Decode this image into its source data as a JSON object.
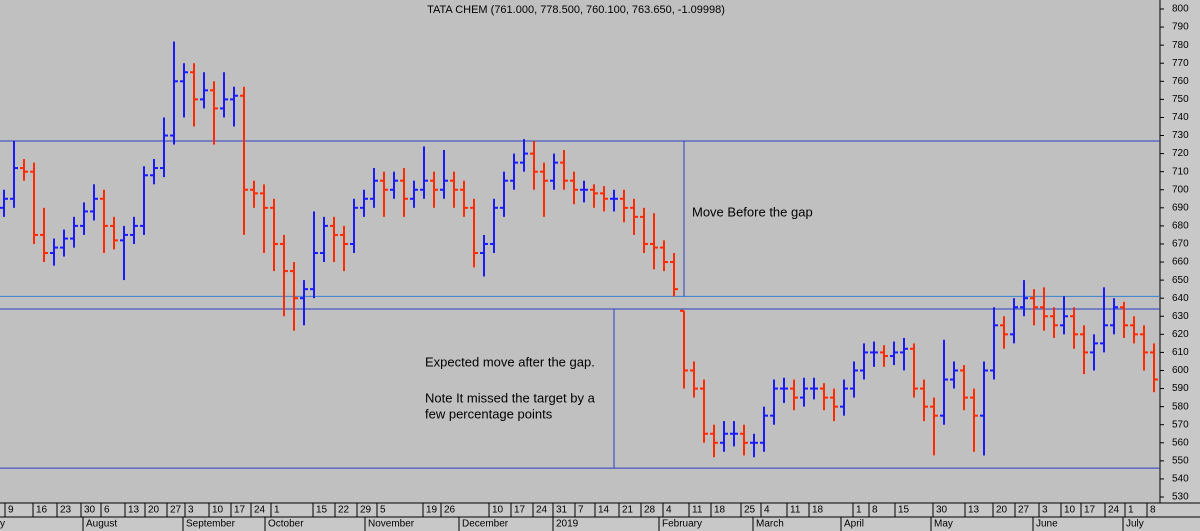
{
  "chart_data": {
    "type": "ohlc",
    "title": "TATA CHEM (761.000, 778.500, 760.100, 763.650, -1.09998)",
    "up_color": "#1a1aff",
    "down_color": "#ff2a00",
    "open": [
      690,
      695,
      712,
      710,
      675,
      665,
      668,
      673,
      680,
      688,
      695,
      680,
      672,
      675,
      680,
      708,
      712,
      730,
      760,
      765,
      750,
      755,
      745,
      750,
      752,
      700,
      698,
      690,
      670,
      655,
      640,
      645,
      665,
      680,
      675,
      670,
      690,
      695,
      705,
      700,
      705,
      695,
      700,
      705,
      700,
      705,
      700,
      690,
      665,
      670,
      690,
      705,
      715,
      720,
      710,
      705,
      715,
      705,
      700,
      700,
      698,
      695,
      695,
      690,
      685,
      670,
      668,
      660,
      633,
      600,
      590,
      565,
      560,
      565,
      565,
      560,
      560,
      575,
      590,
      590,
      585,
      590,
      590,
      585,
      580,
      590,
      600,
      610,
      610,
      608,
      610,
      612,
      590,
      580,
      575,
      595,
      600,
      585,
      575,
      600,
      625,
      620,
      635,
      640,
      635,
      630,
      625,
      630,
      620,
      610,
      615,
      625,
      635,
      625,
      620,
      610
    ],
    "high": [
      700,
      727,
      717,
      715,
      690,
      673,
      678,
      685,
      693,
      703,
      700,
      685,
      680,
      685,
      713,
      717,
      740,
      782,
      770,
      770,
      765,
      760,
      765,
      757,
      757,
      705,
      703,
      695,
      675,
      660,
      650,
      688,
      685,
      685,
      680,
      695,
      700,
      712,
      710,
      710,
      712,
      705,
      724,
      710,
      722,
      710,
      705,
      695,
      675,
      695,
      710,
      720,
      728,
      727,
      715,
      720,
      722,
      710,
      705,
      703,
      702,
      700,
      700,
      695,
      690,
      687,
      672,
      665,
      633,
      605,
      595,
      570,
      572,
      572,
      570,
      565,
      580,
      595,
      596,
      595,
      596,
      596,
      593,
      590,
      595,
      605,
      615,
      616,
      614,
      616,
      618,
      615,
      595,
      585,
      617,
      605,
      603,
      590,
      605,
      635,
      630,
      640,
      650,
      645,
      646,
      635,
      641,
      635,
      625,
      620,
      646,
      640,
      638,
      630,
      625,
      615
    ],
    "low": [
      685,
      690,
      705,
      670,
      660,
      658,
      663,
      668,
      675,
      683,
      665,
      667,
      650,
      670,
      675,
      703,
      707,
      725,
      740,
      735,
      745,
      725,
      740,
      735,
      675,
      690,
      665,
      655,
      630,
      622,
      625,
      640,
      660,
      660,
      655,
      665,
      685,
      690,
      685,
      695,
      685,
      690,
      695,
      690,
      695,
      690,
      685,
      657,
      652,
      665,
      685,
      700,
      710,
      700,
      685,
      700,
      700,
      692,
      693,
      690,
      688,
      688,
      682,
      675,
      665,
      656,
      655,
      641,
      590,
      585,
      560,
      552,
      555,
      558,
      553,
      552,
      555,
      570,
      582,
      578,
      580,
      584,
      578,
      572,
      575,
      585,
      595,
      602,
      602,
      603,
      600,
      585,
      572,
      553,
      570,
      590,
      578,
      555,
      553,
      595,
      612,
      615,
      630,
      625,
      622,
      618,
      620,
      612,
      598,
      600,
      610,
      620,
      618,
      615,
      600,
      588
    ],
    "close": [
      695,
      712,
      710,
      675,
      665,
      668,
      673,
      680,
      688,
      695,
      680,
      672,
      675,
      680,
      708,
      712,
      730,
      760,
      765,
      750,
      755,
      745,
      750,
      752,
      700,
      698,
      690,
      670,
      655,
      640,
      645,
      665,
      680,
      675,
      670,
      690,
      695,
      705,
      700,
      705,
      695,
      700,
      705,
      700,
      705,
      700,
      690,
      665,
      670,
      690,
      705,
      715,
      720,
      710,
      705,
      715,
      705,
      700,
      700,
      698,
      695,
      695,
      690,
      685,
      670,
      668,
      660,
      645,
      600,
      590,
      565,
      560,
      565,
      565,
      560,
      560,
      575,
      590,
      590,
      585,
      590,
      590,
      585,
      580,
      590,
      600,
      610,
      610,
      608,
      610,
      612,
      590,
      580,
      575,
      595,
      600,
      585,
      575,
      600,
      625,
      620,
      635,
      640,
      635,
      630,
      625,
      630,
      620,
      610,
      615,
      625,
      635,
      625,
      620,
      610,
      595
    ],
    "xlim": [
      -0.4,
      115.6
    ],
    "ylim": [
      530,
      800
    ],
    "yticks": [
      530,
      540,
      550,
      560,
      570,
      580,
      590,
      600,
      610,
      620,
      630,
      640,
      650,
      660,
      670,
      680,
      690,
      700,
      710,
      720,
      730,
      740,
      750,
      760,
      770,
      780,
      790,
      800
    ],
    "xticks": [
      {
        "value": 0.4,
        "label": "9"
      },
      {
        "value": 3.2,
        "label": "16"
      },
      {
        "value": 5.6,
        "label": "23"
      },
      {
        "value": 8.0,
        "label": "30"
      },
      {
        "value": 10.0,
        "label": "6"
      },
      {
        "value": 12.4,
        "label": "13"
      },
      {
        "value": 14.4,
        "label": "20"
      },
      {
        "value": 16.6,
        "label": "27"
      },
      {
        "value": 18.4,
        "label": "3"
      },
      {
        "value": 20.8,
        "label": "10"
      },
      {
        "value": 23.0,
        "label": "17"
      },
      {
        "value": 25.0,
        "label": "24"
      },
      {
        "value": 27.0,
        "label": "1"
      },
      {
        "value": 31.2,
        "label": "15"
      },
      {
        "value": 33.4,
        "label": "22"
      },
      {
        "value": 35.6,
        "label": "29"
      },
      {
        "value": 37.6,
        "label": "5"
      },
      {
        "value": 42.2,
        "label": "19"
      },
      {
        "value": 44.0,
        "label": "26"
      },
      {
        "value": 48.8,
        "label": "10"
      },
      {
        "value": 51.0,
        "label": "17"
      },
      {
        "value": 53.2,
        "label": "24"
      },
      {
        "value": 55.2,
        "label": "31"
      },
      {
        "value": 57.4,
        "label": "7"
      },
      {
        "value": 59.4,
        "label": "14"
      },
      {
        "value": 61.8,
        "label": "21"
      },
      {
        "value": 64.0,
        "label": "28"
      },
      {
        "value": 66.2,
        "label": "4"
      },
      {
        "value": 68.8,
        "label": "11"
      },
      {
        "value": 71.0,
        "label": "18"
      },
      {
        "value": 74.0,
        "label": "25"
      },
      {
        "value": 76.0,
        "label": "4"
      },
      {
        "value": 78.6,
        "label": "11"
      },
      {
        "value": 80.8,
        "label": "18"
      },
      {
        "value": 85.2,
        "label": "1"
      },
      {
        "value": 86.8,
        "label": "8"
      },
      {
        "value": 89.4,
        "label": "15"
      },
      {
        "value": 93.2,
        "label": "30"
      },
      {
        "value": 96.4,
        "label": "13"
      },
      {
        "value": 99.2,
        "label": "20"
      },
      {
        "value": 101.4,
        "label": "27"
      },
      {
        "value": 103.8,
        "label": "3"
      },
      {
        "value": 106.0,
        "label": "10"
      },
      {
        "value": 108.0,
        "label": "17"
      },
      {
        "value": 110.4,
        "label": "24"
      },
      {
        "value": 112.4,
        "label": "1"
      },
      {
        "value": 114.6,
        "label": "8"
      }
    ],
    "month_ticks": [
      {
        "value": -0.4,
        "label": "y"
      },
      {
        "value": 8.2,
        "label": "August"
      },
      {
        "value": 18.2,
        "label": "September"
      },
      {
        "value": 26.4,
        "label": "October"
      },
      {
        "value": 36.4,
        "label": "November"
      },
      {
        "value": 45.8,
        "label": "December"
      },
      {
        "value": 55.2,
        "label": "2019"
      },
      {
        "value": 65.8,
        "label": "February"
      },
      {
        "value": 75.2,
        "label": "March"
      },
      {
        "value": 84.0,
        "label": "April"
      },
      {
        "value": 93.0,
        "label": "May"
      },
      {
        "value": 103.2,
        "label": "June"
      },
      {
        "value": 112.2,
        "label": "July"
      }
    ],
    "hlines": [
      {
        "value": 727,
        "color": "#2a3fbf"
      },
      {
        "value": 641,
        "color": "#3a7fd0"
      },
      {
        "value": 634,
        "color": "#2a3fbf"
      },
      {
        "value": 546,
        "color": "#2a3fbf"
      }
    ],
    "vlines": [
      {
        "x": 68.0,
        "from": 641,
        "to": 727
      },
      {
        "x": 61.0,
        "from": 546,
        "to": 634
      }
    ],
    "annotations": [
      "Move Before the gap",
      "Expected move after the gap.",
      "Note It missed the target by a",
      "few percentage points"
    ]
  }
}
